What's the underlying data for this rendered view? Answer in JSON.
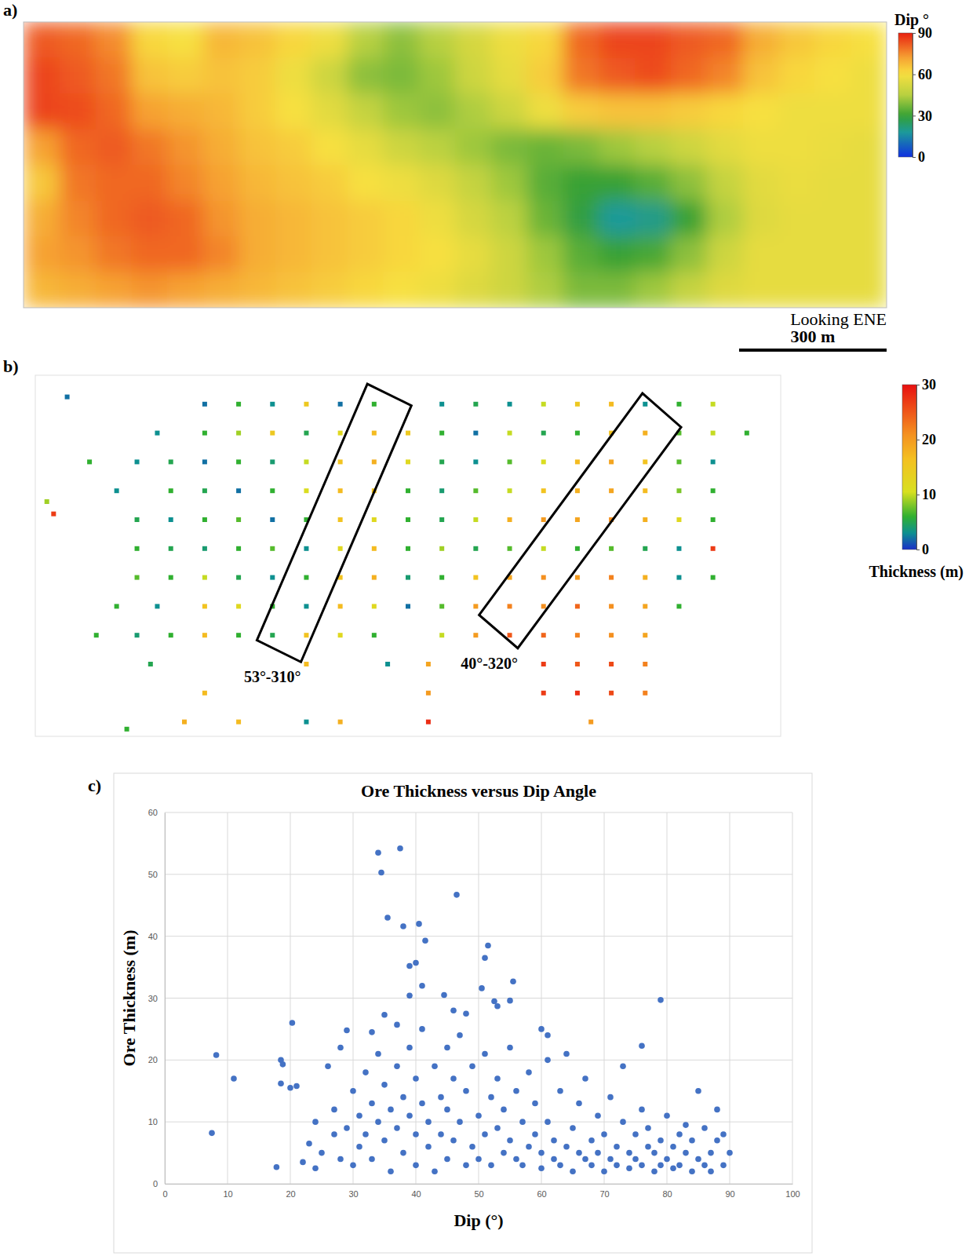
{
  "chart_data": [
    {
      "type": "heatmap",
      "panel": "a)",
      "z": [
        [
          82,
          80,
          75,
          62,
          60,
          68,
          66,
          62,
          58,
          45,
          40,
          45,
          52,
          58,
          62,
          80,
          85,
          85,
          82,
          80,
          70,
          65,
          62,
          60
        ],
        [
          85,
          82,
          78,
          66,
          64,
          66,
          64,
          58,
          50,
          40,
          38,
          42,
          50,
          56,
          64,
          78,
          82,
          84,
          80,
          76,
          66,
          62,
          60,
          58
        ],
        [
          85,
          84,
          80,
          72,
          70,
          68,
          64,
          60,
          55,
          48,
          42,
          40,
          44,
          50,
          58,
          64,
          66,
          66,
          64,
          62,
          60,
          58,
          58,
          58
        ],
        [
          72,
          80,
          82,
          78,
          74,
          70,
          66,
          64,
          60,
          56,
          50,
          46,
          42,
          38,
          36,
          38,
          42,
          45,
          50,
          55,
          58,
          58,
          57,
          56
        ],
        [
          65,
          78,
          80,
          80,
          76,
          72,
          68,
          66,
          64,
          60,
          58,
          54,
          48,
          42,
          34,
          30,
          30,
          34,
          40,
          48,
          55,
          57,
          56,
          56
        ],
        [
          70,
          76,
          80,
          82,
          80,
          74,
          70,
          68,
          66,
          64,
          62,
          58,
          52,
          46,
          36,
          28,
          18,
          20,
          30,
          44,
          54,
          56,
          56,
          56
        ],
        [
          72,
          74,
          78,
          80,
          80,
          76,
          70,
          68,
          66,
          64,
          62,
          60,
          56,
          50,
          42,
          34,
          30,
          32,
          40,
          50,
          56,
          56,
          56,
          56
        ],
        [
          68,
          70,
          72,
          74,
          72,
          70,
          68,
          66,
          64,
          62,
          60,
          58,
          54,
          50,
          44,
          38,
          38,
          42,
          48,
          54,
          56,
          56,
          56,
          56
        ]
      ],
      "xlim": [
        0,
        1755
      ],
      "tick_labels": false,
      "colorbar": {
        "label": "Dip °",
        "range": [
          0,
          90
        ],
        "ticks": [
          0,
          30,
          60,
          90
        ]
      },
      "annotations": [
        {
          "text": "Looking ENE"
        }
      ],
      "scale_bar": {
        "value": 300,
        "label": "300 m"
      }
    },
    {
      "type": "scatter",
      "panel": "b)",
      "x": [
        47,
        250,
        300,
        350,
        400,
        450,
        500,
        600,
        650,
        700,
        750,
        800,
        850,
        900,
        950,
        1000,
        180,
        250,
        300,
        350,
        400,
        450,
        500,
        550,
        600,
        650,
        700,
        750,
        800,
        850,
        900,
        950,
        1000,
        1050,
        80,
        150,
        200,
        250,
        300,
        350,
        400,
        450,
        500,
        550,
        600,
        650,
        700,
        750,
        800,
        850,
        900,
        950,
        1000,
        120,
        200,
        250,
        300,
        350,
        400,
        450,
        500,
        550,
        600,
        650,
        700,
        750,
        800,
        850,
        900,
        950,
        1000,
        17,
        27,
        150,
        200,
        250,
        300,
        350,
        400,
        450,
        500,
        550,
        600,
        650,
        700,
        750,
        800,
        850,
        900,
        950,
        1000,
        150,
        200,
        250,
        300,
        350,
        400,
        450,
        500,
        550,
        600,
        650,
        700,
        750,
        800,
        850,
        900,
        950,
        1000,
        150,
        200,
        250,
        300,
        350,
        400,
        450,
        500,
        550,
        600,
        650,
        700,
        750,
        800,
        850,
        900,
        950,
        1000,
        120,
        180,
        250,
        300,
        350,
        400,
        450,
        500,
        550,
        600,
        650,
        700,
        750,
        800,
        850,
        900,
        950,
        90,
        150,
        200,
        250,
        300,
        350,
        400,
        450,
        500,
        600,
        650,
        700,
        750,
        800,
        850,
        900,
        170,
        400,
        520,
        580,
        700,
        750,
        800,
        850,
        900,
        250,
        580,
        750,
        800,
        850,
        900,
        220,
        300,
        400,
        450,
        580,
        820,
        135
      ],
      "y": [
        470,
        460,
        460,
        460,
        460,
        460,
        460,
        460,
        460,
        460,
        460,
        460,
        460,
        460,
        460,
        460,
        420,
        420,
        420,
        420,
        420,
        420,
        420,
        420,
        420,
        420,
        420,
        420,
        420,
        420,
        420,
        420,
        420,
        420,
        380,
        380,
        380,
        380,
        380,
        380,
        380,
        380,
        380,
        380,
        380,
        380,
        380,
        380,
        380,
        380,
        380,
        380,
        380,
        340,
        340,
        340,
        340,
        340,
        340,
        340,
        340,
        340,
        340,
        340,
        340,
        340,
        340,
        340,
        340,
        340,
        340,
        325,
        308,
        300,
        300,
        300,
        300,
        300,
        300,
        300,
        300,
        300,
        300,
        300,
        300,
        300,
        300,
        300,
        300,
        300,
        300,
        260,
        260,
        260,
        260,
        260,
        260,
        260,
        260,
        260,
        260,
        260,
        260,
        260,
        260,
        260,
        260,
        260,
        260,
        220,
        220,
        220,
        220,
        220,
        220,
        220,
        220,
        220,
        220,
        220,
        220,
        220,
        220,
        220,
        220,
        220,
        220,
        180,
        180,
        180,
        180,
        180,
        180,
        180,
        180,
        180,
        180,
        180,
        180,
        180,
        180,
        180,
        180,
        180,
        140,
        140,
        140,
        140,
        140,
        140,
        140,
        140,
        140,
        140,
        140,
        140,
        140,
        140,
        140,
        140,
        100,
        100,
        100,
        100,
        100,
        100,
        100,
        100,
        100,
        60,
        60,
        60,
        60,
        60,
        60,
        20,
        20,
        20,
        20,
        20,
        20,
        10
      ],
      "values": [
        2,
        2,
        6,
        3,
        15,
        2,
        6,
        3,
        5,
        3,
        10,
        15,
        17,
        3,
        6,
        10,
        3,
        6,
        9,
        15,
        5,
        12,
        17,
        15,
        6,
        2,
        10,
        5,
        6,
        16,
        18,
        7,
        10,
        6,
        6,
        3,
        5,
        2,
        6,
        4,
        10,
        16,
        18,
        12,
        5,
        3,
        7,
        11,
        17,
        19,
        16,
        7,
        3,
        3,
        6,
        5,
        2,
        6,
        11,
        17,
        16,
        6,
        4,
        7,
        10,
        16,
        18,
        19,
        17,
        8,
        6,
        9,
        27,
        5,
        3,
        6,
        7,
        2,
        6,
        16,
        12,
        6,
        5,
        10,
        18,
        20,
        19,
        21,
        18,
        12,
        6,
        6,
        5,
        4,
        6,
        7,
        3,
        12,
        17,
        6,
        9,
        5,
        7,
        10,
        6,
        7,
        5,
        3,
        27,
        7,
        6,
        10,
        5,
        3,
        6,
        16,
        18,
        4,
        6,
        16,
        19,
        21,
        20,
        22,
        18,
        3,
        6,
        6,
        3,
        16,
        12,
        6,
        3,
        17,
        12,
        2,
        7,
        20,
        22,
        21,
        24,
        21,
        19,
        6,
        6,
        4,
        6,
        17,
        6,
        5,
        16,
        12,
        6,
        10,
        20,
        25,
        24,
        22,
        21,
        19,
        5,
        17,
        3,
        19,
        26,
        27,
        25,
        26,
        22,
        17,
        20,
        27,
        28,
        26,
        22,
        18,
        17,
        3,
        18,
        28,
        20,
        6
      ],
      "marker": "square",
      "xlim": [
        0,
        1100
      ],
      "ylim": [
        0,
        500
      ],
      "tick_labels": false,
      "colorbar": {
        "label": "Thickness (m)",
        "range": [
          0,
          30
        ],
        "ticks": [
          0,
          10,
          20,
          30
        ]
      },
      "annotations": [
        {
          "text": "53°-310°",
          "polygon": [
            [
              327,
              133
            ],
            [
              490,
              488
            ],
            [
              555,
              458
            ],
            [
              392,
              103
            ]
          ]
        },
        {
          "text": "40°-320°",
          "polygon": [
            [
              655,
              168
            ],
            [
              896,
              475
            ],
            [
              953,
              428
            ],
            [
              712,
              122
            ]
          ]
        }
      ]
    },
    {
      "type": "scatter",
      "panel": "c)",
      "title": "Ore Thickness versus Dip Angle",
      "x_label": "Dip (°)",
      "y_label": "Ore Thickness (m)",
      "x": [
        7.5,
        8.2,
        11,
        17.8,
        18.5,
        18.8,
        18.5,
        20.3,
        20,
        21,
        34,
        37.5,
        34.5,
        46.5,
        35.5,
        38,
        40.5,
        41.5,
        39,
        40,
        51.5,
        51,
        39,
        41,
        44.5,
        50.5,
        55.5,
        52.5,
        55,
        79,
        76,
        60,
        61,
        29,
        33,
        35,
        37,
        46,
        48,
        53,
        22,
        23,
        24,
        24,
        25,
        26,
        27,
        27,
        28,
        28,
        29,
        30,
        30,
        31,
        31,
        32,
        32,
        33,
        33,
        34,
        34,
        35,
        35,
        36,
        36,
        37,
        37,
        38,
        38,
        39,
        39,
        40,
        40,
        40,
        41,
        41,
        42,
        42,
        43,
        43,
        44,
        44,
        45,
        45,
        45,
        46,
        46,
        47,
        47,
        48,
        48,
        49,
        49,
        50,
        50,
        51,
        51,
        52,
        52,
        53,
        53,
        54,
        54,
        55,
        55,
        56,
        56,
        57,
        57,
        58,
        58,
        59,
        59,
        60,
        60,
        61,
        61,
        62,
        62,
        63,
        63,
        64,
        64,
        65,
        65,
        66,
        66,
        67,
        67,
        68,
        68,
        69,
        69,
        70,
        70,
        71,
        71,
        72,
        72,
        73,
        73,
        74,
        74,
        75,
        75,
        76,
        76,
        77,
        77,
        78,
        78,
        79,
        79,
        80,
        80,
        81,
        81,
        82,
        82,
        83,
        83,
        84,
        84,
        85,
        85,
        86,
        86,
        87,
        87,
        88,
        88,
        89,
        89,
        90
      ],
      "y": [
        8.2,
        20.8,
        17,
        2.7,
        20,
        19.3,
        16.2,
        26,
        15.5,
        15.8,
        53.5,
        54.2,
        50.3,
        46.7,
        43,
        41.6,
        42,
        39.3,
        35.2,
        35.7,
        38.5,
        36.5,
        30.4,
        32,
        30.5,
        31.6,
        32.7,
        29.5,
        29.6,
        29.7,
        22.3,
        25,
        24,
        24.8,
        24.5,
        27.3,
        25.7,
        28,
        27.5,
        28.7,
        3.5,
        6.5,
        10,
        2.5,
        5,
        19,
        8,
        12,
        4,
        22,
        9,
        15,
        3,
        11,
        6,
        18,
        8,
        13,
        4,
        10,
        21,
        7,
        16,
        2,
        12,
        19,
        9,
        5,
        14,
        22,
        11,
        3,
        17,
        8,
        13,
        25,
        6,
        10,
        19,
        2,
        14,
        8,
        22,
        4,
        12,
        17,
        7,
        10,
        24,
        3,
        15,
        6,
        19,
        11,
        4,
        21,
        8,
        14,
        3,
        9,
        17,
        5,
        12,
        22,
        7,
        4,
        15,
        10,
        3,
        18,
        6,
        8,
        13,
        2.5,
        5,
        10,
        20,
        4,
        7,
        15,
        3,
        6,
        21,
        9,
        2,
        5,
        13,
        4,
        17,
        7,
        3,
        11,
        5,
        2,
        8,
        14,
        4,
        6,
        3,
        10,
        19,
        5,
        2.5,
        8,
        4,
        12,
        3,
        6,
        9,
        2,
        5,
        7,
        3,
        4,
        11,
        2.5,
        6,
        8,
        3,
        5,
        9.5,
        2,
        7,
        15,
        4,
        3,
        9,
        5,
        2,
        12,
        7,
        3,
        8,
        5
      ],
      "color": "#4472c4",
      "marker": "circle",
      "xlim": [
        0,
        100
      ],
      "ylim": [
        0,
        60
      ],
      "xticks": [
        0,
        10,
        20,
        30,
        40,
        50,
        60,
        70,
        80,
        90,
        100
      ],
      "yticks": [
        0,
        10,
        20,
        30,
        40,
        50,
        60
      ],
      "grid": true
    }
  ]
}
